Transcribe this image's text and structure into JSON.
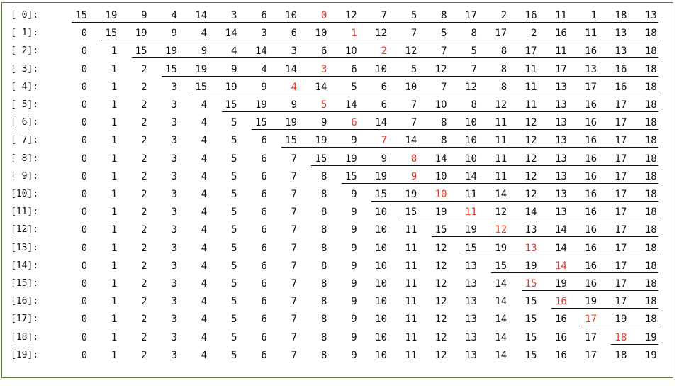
{
  "colors": {
    "text": "#111111",
    "highlight": "#e8392b",
    "frame": "#5c7a3a"
  },
  "rows": [
    {
      "label": "[ 0]:",
      "values": [
        15,
        19,
        9,
        4,
        14,
        3,
        6,
        10,
        0,
        12,
        7,
        5,
        8,
        17,
        2,
        16,
        11,
        1,
        18,
        13
      ],
      "highlight": 8,
      "underline": [
        0,
        19
      ]
    },
    {
      "label": "[ 1]:",
      "values": [
        0,
        15,
        19,
        9,
        4,
        14,
        3,
        6,
        10,
        1,
        12,
        7,
        5,
        8,
        17,
        2,
        16,
        11,
        13,
        18
      ],
      "highlight": 9,
      "underline": [
        1,
        19
      ]
    },
    {
      "label": "[ 2]:",
      "values": [
        0,
        1,
        15,
        19,
        9,
        4,
        14,
        3,
        6,
        10,
        2,
        12,
        7,
        5,
        8,
        17,
        11,
        16,
        13,
        18
      ],
      "highlight": 10,
      "underline": [
        2,
        19
      ]
    },
    {
      "label": "[ 3]:",
      "values": [
        0,
        1,
        2,
        15,
        19,
        9,
        4,
        14,
        3,
        6,
        10,
        5,
        12,
        7,
        8,
        11,
        17,
        13,
        16,
        18
      ],
      "highlight": 8,
      "underline": [
        3,
        19
      ]
    },
    {
      "label": "[ 4]:",
      "values": [
        0,
        1,
        2,
        3,
        15,
        19,
        9,
        4,
        14,
        5,
        6,
        10,
        7,
        12,
        8,
        11,
        13,
        17,
        16,
        18
      ],
      "highlight": 7,
      "underline": [
        4,
        19
      ]
    },
    {
      "label": "[ 5]:",
      "values": [
        0,
        1,
        2,
        3,
        4,
        15,
        19,
        9,
        5,
        14,
        6,
        7,
        10,
        8,
        12,
        11,
        13,
        16,
        17,
        18
      ],
      "highlight": 8,
      "underline": [
        5,
        19
      ]
    },
    {
      "label": "[ 6]:",
      "values": [
        0,
        1,
        2,
        3,
        4,
        5,
        15,
        19,
        9,
        6,
        14,
        7,
        8,
        10,
        11,
        12,
        13,
        16,
        17,
        18
      ],
      "highlight": 9,
      "underline": [
        6,
        19
      ]
    },
    {
      "label": "[ 7]:",
      "values": [
        0,
        1,
        2,
        3,
        4,
        5,
        6,
        15,
        19,
        9,
        7,
        14,
        8,
        10,
        11,
        12,
        13,
        16,
        17,
        18
      ],
      "highlight": 10,
      "underline": [
        7,
        19
      ]
    },
    {
      "label": "[ 8]:",
      "values": [
        0,
        1,
        2,
        3,
        4,
        5,
        6,
        7,
        15,
        19,
        9,
        8,
        14,
        10,
        11,
        12,
        13,
        16,
        17,
        18
      ],
      "highlight": 11,
      "underline": [
        8,
        19
      ]
    },
    {
      "label": "[ 9]:",
      "values": [
        0,
        1,
        2,
        3,
        4,
        5,
        6,
        7,
        8,
        15,
        19,
        9,
        10,
        14,
        11,
        12,
        13,
        16,
        17,
        18
      ],
      "highlight": 11,
      "underline": [
        9,
        19
      ]
    },
    {
      "label": "[10]:",
      "values": [
        0,
        1,
        2,
        3,
        4,
        5,
        6,
        7,
        8,
        9,
        15,
        19,
        10,
        11,
        14,
        12,
        13,
        16,
        17,
        18
      ],
      "highlight": 12,
      "underline": [
        10,
        19
      ]
    },
    {
      "label": "[11]:",
      "values": [
        0,
        1,
        2,
        3,
        4,
        5,
        6,
        7,
        8,
        9,
        10,
        15,
        19,
        11,
        12,
        14,
        13,
        16,
        17,
        18
      ],
      "highlight": 13,
      "underline": [
        11,
        19
      ]
    },
    {
      "label": "[12]:",
      "values": [
        0,
        1,
        2,
        3,
        4,
        5,
        6,
        7,
        8,
        9,
        10,
        11,
        15,
        19,
        12,
        13,
        14,
        16,
        17,
        18
      ],
      "highlight": 14,
      "underline": [
        12,
        19
      ]
    },
    {
      "label": "[13]:",
      "values": [
        0,
        1,
        2,
        3,
        4,
        5,
        6,
        7,
        8,
        9,
        10,
        11,
        12,
        15,
        19,
        13,
        14,
        16,
        17,
        18
      ],
      "highlight": 15,
      "underline": [
        13,
        19
      ]
    },
    {
      "label": "[14]:",
      "values": [
        0,
        1,
        2,
        3,
        4,
        5,
        6,
        7,
        8,
        9,
        10,
        11,
        12,
        13,
        15,
        19,
        14,
        16,
        17,
        18
      ],
      "highlight": 16,
      "underline": [
        14,
        19
      ]
    },
    {
      "label": "[15]:",
      "values": [
        0,
        1,
        2,
        3,
        4,
        5,
        6,
        7,
        8,
        9,
        10,
        11,
        12,
        13,
        14,
        15,
        19,
        16,
        17,
        18
      ],
      "highlight": 15,
      "underline": [
        15,
        19
      ]
    },
    {
      "label": "[16]:",
      "values": [
        0,
        1,
        2,
        3,
        4,
        5,
        6,
        7,
        8,
        9,
        10,
        11,
        12,
        13,
        14,
        15,
        16,
        19,
        17,
        18
      ],
      "highlight": 16,
      "underline": [
        16,
        19
      ]
    },
    {
      "label": "[17]:",
      "values": [
        0,
        1,
        2,
        3,
        4,
        5,
        6,
        7,
        8,
        9,
        10,
        11,
        12,
        13,
        14,
        15,
        16,
        17,
        19,
        18
      ],
      "highlight": 17,
      "underline": [
        17,
        19
      ]
    },
    {
      "label": "[18]:",
      "values": [
        0,
        1,
        2,
        3,
        4,
        5,
        6,
        7,
        8,
        9,
        10,
        11,
        12,
        13,
        14,
        15,
        16,
        17,
        18,
        19
      ],
      "highlight": 18,
      "underline": [
        18,
        19
      ]
    },
    {
      "label": "[19]:",
      "values": [
        0,
        1,
        2,
        3,
        4,
        5,
        6,
        7,
        8,
        9,
        10,
        11,
        12,
        13,
        14,
        15,
        16,
        17,
        18,
        19
      ],
      "highlight": null,
      "underline": null
    }
  ]
}
